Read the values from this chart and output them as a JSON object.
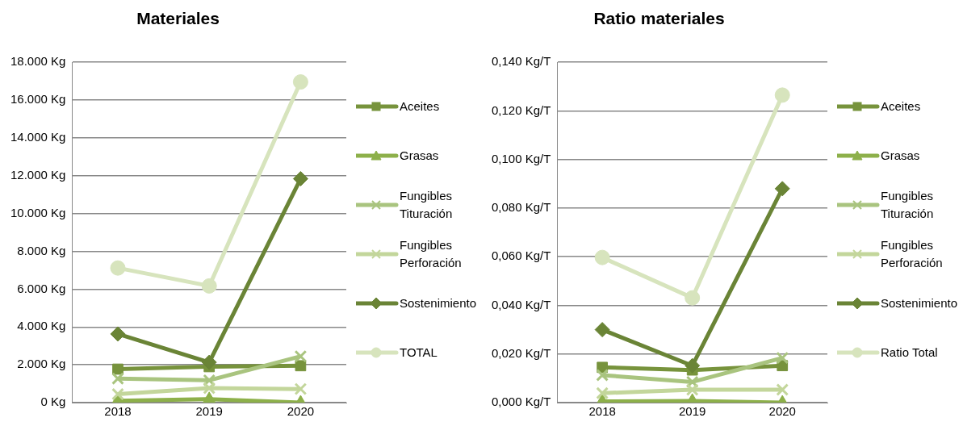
{
  "chart_data": [
    {
      "type": "line",
      "title": "Materiales",
      "categories": [
        "2018",
        "2019",
        "2020"
      ],
      "series": [
        {
          "name": "Aceites",
          "color": "#77933c",
          "marker": "square",
          "values": [
            1770,
            1900,
            1950
          ]
        },
        {
          "name": "Grasas",
          "color": "#8db04a",
          "marker": "triangle",
          "values": [
            100,
            180,
            0
          ]
        },
        {
          "name": "Fungibles Tituración",
          "color": "#a9c47f",
          "marker": "cross",
          "values": [
            1270,
            1180,
            2450
          ]
        },
        {
          "name": "Fungibles Perforación",
          "color": "#c3d69b",
          "marker": "cross",
          "values": [
            450,
            770,
            720
          ]
        },
        {
          "name": "Sostenimiento",
          "color": "#6a8436",
          "marker": "diamond",
          "values": [
            3630,
            2130,
            11840
          ]
        },
        {
          "name": "TOTAL",
          "color": "#d7e4bd",
          "marker": "circle",
          "values": [
            7120,
            6170,
            16960
          ]
        }
      ],
      "ylim": [
        0,
        18000
      ],
      "yticks": [
        {
          "value": 0,
          "label": "0 Kg"
        },
        {
          "value": 2000,
          "label": "2.000 Kg"
        },
        {
          "value": 4000,
          "label": "4.000 Kg"
        },
        {
          "value": 6000,
          "label": "6.000 Kg"
        },
        {
          "value": 8000,
          "label": "8.000 Kg"
        },
        {
          "value": 10000,
          "label": "10.000 Kg"
        },
        {
          "value": 12000,
          "label": "12.000 Kg"
        },
        {
          "value": 14000,
          "label": "14.000 Kg"
        },
        {
          "value": 16000,
          "label": "16.000 Kg"
        },
        {
          "value": 18000,
          "label": "18.000 Kg"
        }
      ],
      "grid": "y",
      "legend": "right"
    },
    {
      "type": "line",
      "title": "Ratio materiales",
      "categories": [
        "2018",
        "2019",
        "2020"
      ],
      "series": [
        {
          "name": "Aceites",
          "color": "#77933c",
          "marker": "square",
          "values": [
            0.0145,
            0.0134,
            0.0152
          ]
        },
        {
          "name": "Grasas",
          "color": "#8db04a",
          "marker": "triangle",
          "values": [
            0.0005,
            0.0007,
            0
          ]
        },
        {
          "name": "Fungibles Tituración",
          "color": "#a9c47f",
          "marker": "cross",
          "values": [
            0.0113,
            0.0085,
            0.0184
          ]
        },
        {
          "name": "Fungibles Perforación",
          "color": "#c3d69b",
          "marker": "cross",
          "values": [
            0.0039,
            0.0053,
            0.0053
          ]
        },
        {
          "name": "Sostenimiento",
          "color": "#6a8436",
          "marker": "diamond",
          "values": [
            0.03,
            0.0152,
            0.088
          ]
        },
        {
          "name": "Ratio Total",
          "color": "#d7e4bd",
          "marker": "circle",
          "values": [
            0.0597,
            0.0431,
            0.1265
          ]
        }
      ],
      "ylim": [
        0,
        0.14
      ],
      "yticks": [
        {
          "value": 0,
          "label": "0,000 Kg/T"
        },
        {
          "value": 0.02,
          "label": "0,020 Kg/T"
        },
        {
          "value": 0.04,
          "label": "0,040 Kg/T"
        },
        {
          "value": 0.06,
          "label": "0,060 Kg/T"
        },
        {
          "value": 0.08,
          "label": "0,080 Kg/T"
        },
        {
          "value": 0.1,
          "label": "0,100 Kg/T"
        },
        {
          "value": 0.12,
          "label": "0,120 Kg/T"
        },
        {
          "value": 0.14,
          "label": "0,140 Kg/T"
        }
      ],
      "grid": "y",
      "legend": "right"
    }
  ]
}
